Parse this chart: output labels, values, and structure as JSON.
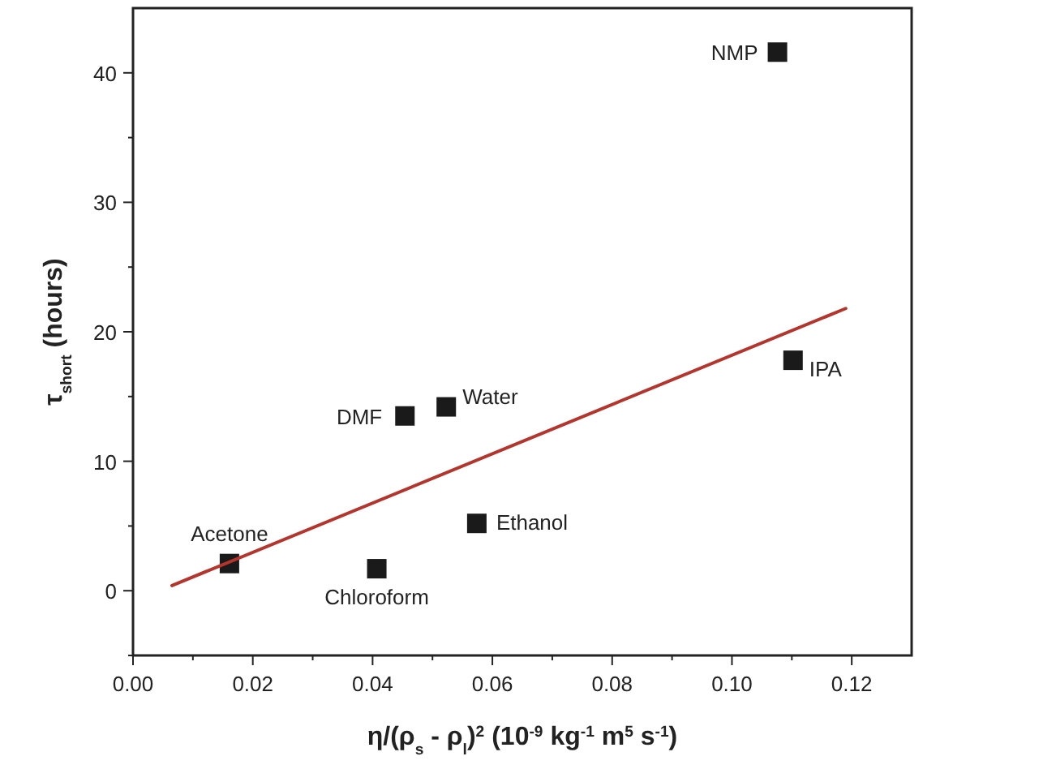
{
  "chart_data": {
    "type": "scatter",
    "xlabel": "η/(ρ$_{s}$ - ρ$_{l}$)$^{2}$ (10$^{-9}$ kg$^{-1}$ m$^{5}$ s$^{-1}$)",
    "ylabel": "τ$_{short}$ (hours)",
    "xlim": [
      0,
      0.13
    ],
    "ylim": [
      -5,
      45
    ],
    "xticks": [
      {
        "value": 0,
        "label": "0.00"
      },
      {
        "value": 0.01,
        "label": null
      },
      {
        "value": 0.02,
        "label": "0.02"
      },
      {
        "value": 0.03,
        "label": null
      },
      {
        "value": 0.04,
        "label": "0.04"
      },
      {
        "value": 0.05,
        "label": null
      },
      {
        "value": 0.06,
        "label": "0.06"
      },
      {
        "value": 0.07,
        "label": null
      },
      {
        "value": 0.08,
        "label": "0.08"
      },
      {
        "value": 0.09,
        "label": null
      },
      {
        "value": 0.1,
        "label": "0.10"
      },
      {
        "value": 0.11,
        "label": null
      },
      {
        "value": 0.12,
        "label": "0.12"
      }
    ],
    "yticks": [
      {
        "value": -5,
        "label": null
      },
      0,
      {
        "value": 5,
        "label": null
      },
      10,
      {
        "value": 15,
        "label": null
      },
      20,
      {
        "value": 25,
        "label": null
      },
      30,
      {
        "value": 35,
        "label": null
      },
      40
    ],
    "grid": false,
    "series": [
      {
        "marker": "square",
        "color": "#1a1a1a",
        "x": [
          0.0161,
          0.0407,
          0.0454,
          0.0523,
          0.0574,
          0.1076,
          0.1102
        ],
        "values": [
          2.1,
          1.7,
          13.5,
          14.2,
          5.2,
          41.6,
          17.8
        ]
      },
      {
        "type": "line",
        "color": "#b5342c",
        "x": [
          0.0065,
          0.119
        ],
        "values": [
          0.4,
          21.8
        ]
      }
    ],
    "annotations": [
      {
        "text": "Acetone",
        "x": 0.0161,
        "y": 2.1
      },
      {
        "text": "Chloroform",
        "x": 0.0407,
        "y": 1.7
      },
      {
        "text": "DMF",
        "x": 0.0454,
        "y": 13.5
      },
      {
        "text": "Water",
        "x": 0.0523,
        "y": 14.2
      },
      {
        "text": "Ethanol",
        "x": 0.0574,
        "y": 5.2
      },
      {
        "text": "NMP",
        "x": 0.1076,
        "y": 41.6
      },
      {
        "text": "IPA",
        "x": 0.1102,
        "y": 17.8
      }
    ]
  }
}
